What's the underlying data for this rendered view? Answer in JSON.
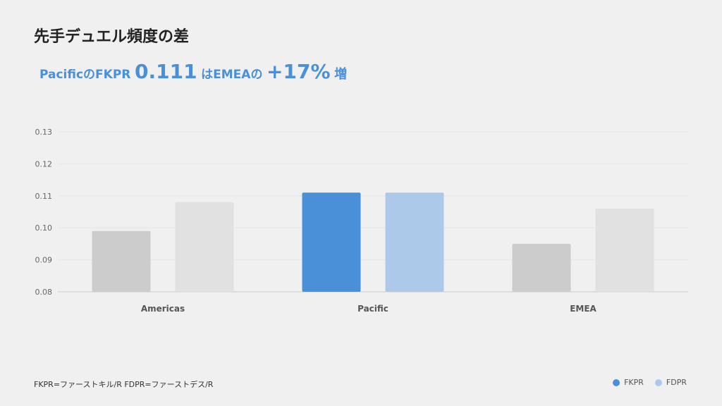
{
  "title": "先手デュエル頻度の差",
  "headline": {
    "prefix": "PacificのFKPR",
    "value": "0.111",
    "middle": "はEMEAの",
    "delta": "+17%",
    "suffix": "増"
  },
  "footnote": "FKPR=ファーストキル/R FDPR=ファーストデス/R",
  "colors": {
    "highlight_fkpr": "#4a90d9",
    "highlight_fdpr": "#adc9e9",
    "muted_fkpr": "#cccccc",
    "muted_fdpr": "#e1e1e1"
  },
  "chart_data": {
    "type": "bar",
    "categories": [
      "Americas",
      "Pacific",
      "EMEA"
    ],
    "series": [
      {
        "name": "FKPR",
        "values": [
          0.099,
          0.111,
          0.095
        ]
      },
      {
        "name": "FDPR",
        "values": [
          0.108,
          0.111,
          0.106
        ]
      }
    ],
    "highlight_category": "Pacific",
    "ylim": [
      0.08,
      0.13
    ],
    "yticks": [
      "0.08",
      "0.09",
      "0.10",
      "0.11",
      "0.12",
      "0.13"
    ],
    "grid": true,
    "legend_position": "bottom-right"
  }
}
